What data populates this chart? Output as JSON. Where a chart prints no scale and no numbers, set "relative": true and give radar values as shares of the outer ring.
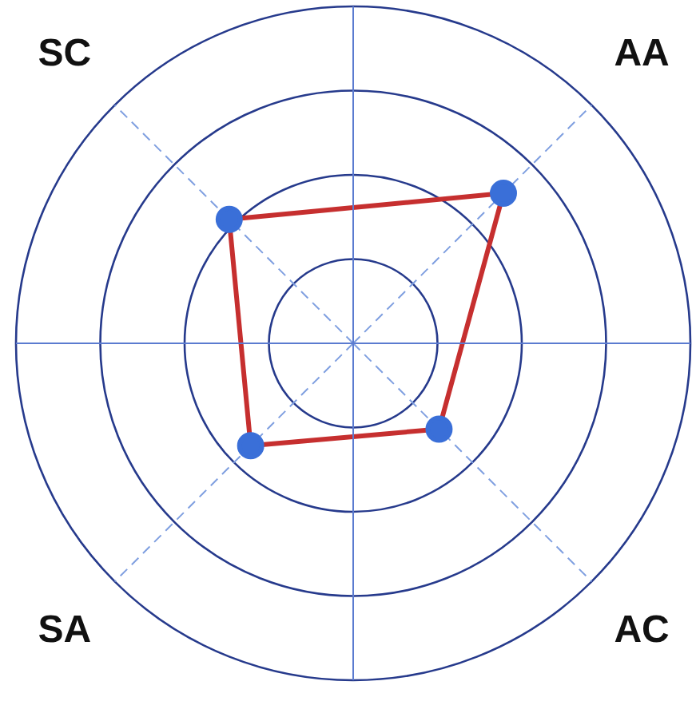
{
  "chart_data": {
    "type": "radar",
    "categories": [
      "AA",
      "AC",
      "SA",
      "SC"
    ],
    "relative": true,
    "grid": true,
    "legend": false,
    "marker": "circle",
    "series": [
      {
        "color": "#c62f2f",
        "colors": [
          "#3a6fd8",
          "#3a6fd8",
          "#3a6fd8",
          "#3a6fd8"
        ],
        "values": [
          0.63,
          0.36,
          0.43,
          0.52
        ]
      }
    ]
  }
}
